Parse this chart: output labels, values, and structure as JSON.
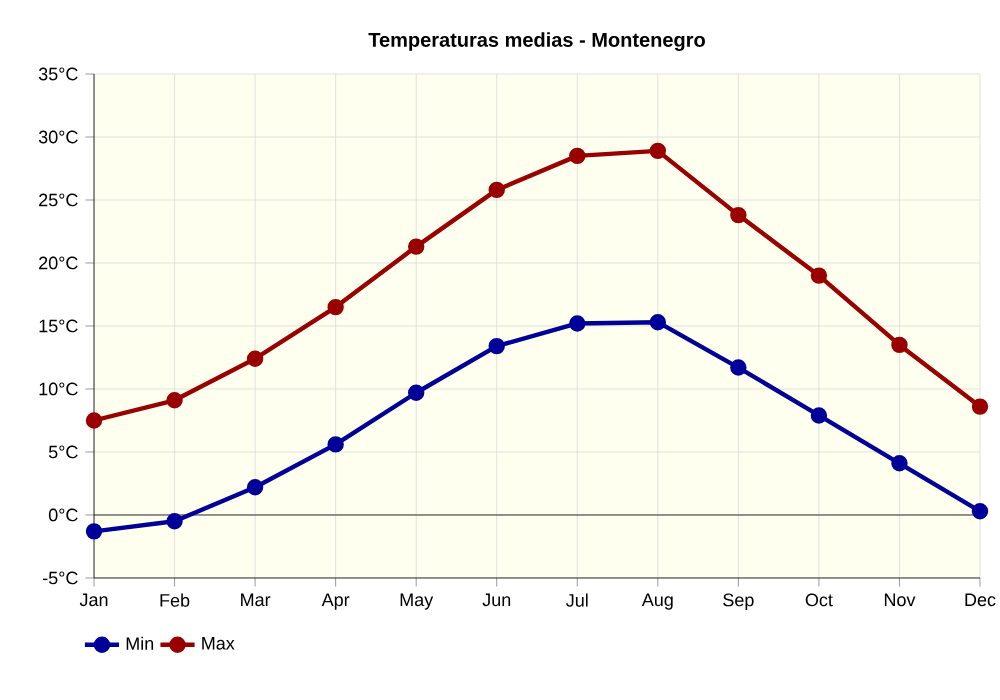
{
  "chart_data": {
    "type": "line",
    "title": "Temperaturas medias - Montenegro",
    "categories": [
      "Jan",
      "Feb",
      "Mar",
      "Apr",
      "May",
      "Jun",
      "Jul",
      "Aug",
      "Sep",
      "Oct",
      "Nov",
      "Dec"
    ],
    "series": [
      {
        "name": "Min",
        "color": "#000099",
        "values": [
          -1.3,
          -0.5,
          2.2,
          5.6,
          9.7,
          13.4,
          15.2,
          15.3,
          11.7,
          7.9,
          4.1,
          0.3
        ]
      },
      {
        "name": "Max",
        "color": "#990000",
        "values": [
          7.5,
          9.1,
          12.4,
          16.5,
          21.3,
          25.8,
          28.5,
          28.9,
          23.8,
          19.0,
          13.5,
          8.6
        ]
      }
    ],
    "ylim": [
      -5,
      35
    ],
    "yticks": [
      {
        "value": -5,
        "label": "-5°C"
      },
      {
        "value": 0,
        "label": "0°C"
      },
      {
        "value": 5,
        "label": "5°C"
      },
      {
        "value": 10,
        "label": "10°C"
      },
      {
        "value": 15,
        "label": "15°C"
      },
      {
        "value": 20,
        "label": "20°C"
      },
      {
        "value": 25,
        "label": "25°C"
      },
      {
        "value": 30,
        "label": "30°C"
      },
      {
        "value": 35,
        "label": "35°C"
      }
    ],
    "ref_lines": [
      {
        "axis": "y",
        "value": 0,
        "color": "#000000"
      }
    ],
    "grid": true,
    "legend": "bottom left",
    "marker": "circle",
    "line_style": "solid"
  }
}
